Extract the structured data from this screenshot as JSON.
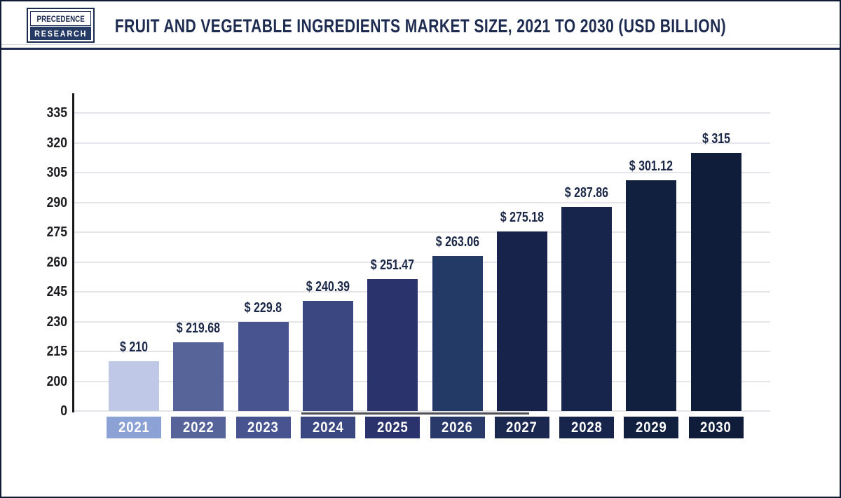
{
  "logo": {
    "line1": "PRECEDENCE",
    "line2": "RESEARCH"
  },
  "chart_data": {
    "type": "bar",
    "title": "FRUIT AND VEGETABLE INGREDIENTS MARKET SIZE, 2021 TO 2030 (USD BILLION)",
    "unit": "USD Billion",
    "categories": [
      "2021",
      "2022",
      "2023",
      "2024",
      "2025",
      "2026",
      "2027",
      "2028",
      "2029",
      "2030"
    ],
    "values": [
      210,
      219.68,
      229.8,
      240.39,
      251.47,
      263.06,
      275.18,
      287.86,
      301.12,
      315
    ],
    "value_labels": [
      "$ 210",
      "$ 219.68",
      "$ 229.8",
      "$ 240.39",
      "$ 251.47",
      "$ 263.06",
      "$ 275.18",
      "$ 287.86",
      "$ 301.12",
      "$ 315"
    ],
    "y_ticks": [
      0,
      200,
      215,
      230,
      245,
      260,
      275,
      290,
      305,
      320,
      335
    ],
    "y_axis_break_after_zero": true,
    "grid": "horizontal",
    "legend": "none",
    "xlabel": "",
    "ylabel": "",
    "bar_colors": [
      "#bfc9e7",
      "#57649a",
      "#475490",
      "#3a4781",
      "#2b336c",
      "#233a66",
      "#17234a",
      "#17254c",
      "#122040",
      "#0f1c3a"
    ],
    "category_box_colors": [
      "#8da2d4",
      "#57649a",
      "#475490",
      "#3a4781",
      "#2b336d",
      "#28396a",
      "#1b2850",
      "#17254c",
      "#122040",
      "#0f1c3a"
    ]
  },
  "colors": {
    "title_text": "#1d2b50",
    "value_label_text": "#1b2747",
    "tick_label_text": "#1d1d22",
    "axis_line": "#17171b",
    "gridline": "#e5e5e9",
    "header_separator": "#1d2b50",
    "frame_border": "#111a33",
    "x_axis_underline": "#4f4f58",
    "logo_navy": "#263a66",
    "background": "#ffffff"
  }
}
